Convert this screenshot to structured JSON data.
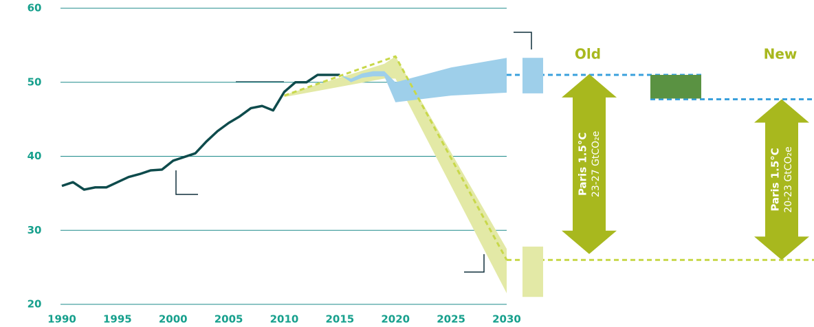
{
  "chart_data": {
    "type": "line",
    "xlim": [
      1990,
      2030
    ],
    "xticks": [
      1990,
      1995,
      2000,
      2005,
      2010,
      2015,
      2020,
      2025,
      2030
    ],
    "ylim": [
      20,
      60
    ],
    "yticks": [
      20,
      30,
      40,
      50,
      60
    ],
    "grid": true,
    "series": [
      {
        "color": "#0e4b4c",
        "dashed": false,
        "x": [
          1990,
          1991,
          1992,
          1993,
          1994,
          1995,
          1996,
          1997,
          1998,
          1999,
          2000,
          2001,
          2002,
          2003,
          2004,
          2005,
          2006,
          2007,
          2008,
          2009,
          2010,
          2011,
          2012,
          2013,
          2014,
          2015
        ],
        "values": [
          36,
          36.5,
          35.5,
          35.8,
          35.8,
          36.5,
          37.2,
          37.6,
          38.1,
          38.2,
          39.4,
          39.9,
          40.4,
          42,
          43.4,
          44.5,
          45.4,
          46.5,
          46.8,
          46.2,
          48.7,
          50,
          50,
          51,
          51,
          51
        ]
      },
      {
        "color": "#c8d84a",
        "dashed": true,
        "x": [
          2010,
          2020,
          2030
        ],
        "values": [
          48.2,
          53.5,
          26
        ]
      }
    ],
    "bands": [
      {
        "color": "#e3e9a6",
        "x": [
          2010,
          2019,
          2020,
          2030
        ],
        "upper": [
          48.3,
          52.5,
          53.5,
          27.5
        ],
        "lower": [
          48,
          50.5,
          50.5,
          21.5
        ]
      },
      {
        "color": "#9ecfea",
        "x": [
          2015,
          2016,
          2017,
          2018,
          2019,
          2020,
          2025,
          2030
        ],
        "upper": [
          51,
          50.5,
          51.2,
          51.5,
          51.5,
          50,
          52,
          53.3
        ],
        "lower": [
          51,
          50,
          50.6,
          50.8,
          50.8,
          47.3,
          48.2,
          48.6
        ]
      }
    ],
    "reference_lines": [
      {
        "value": 51,
        "color": "#3aa0dc"
      },
      {
        "value": 47.7,
        "color": "#3aa0dc"
      },
      {
        "value": 26,
        "color": "#c8d84a"
      }
    ],
    "panels": [
      {
        "label": "Old",
        "ranges": [
          {
            "low": 48.5,
            "high": 53.3,
            "color": "#9ecfea"
          },
          {
            "low": 21,
            "high": 27.8,
            "color": "#e3e9a6"
          }
        ],
        "arrow": {
          "low": 26.8,
          "high": 51.1,
          "color": "#a8b81e",
          "title": "Paris 1.5°C",
          "subtitle": "23-27 GtCO₂e"
        }
      },
      {
        "label": "New",
        "ranges": [
          {
            "low": 47.8,
            "high": 51,
            "color": "#5a9242"
          }
        ],
        "arrow": {
          "low": 26,
          "high": 47.7,
          "color": "#a8b81e",
          "title": "Paris 1.5°C",
          "subtitle": "20-23 GtCO₂e"
        }
      }
    ]
  }
}
